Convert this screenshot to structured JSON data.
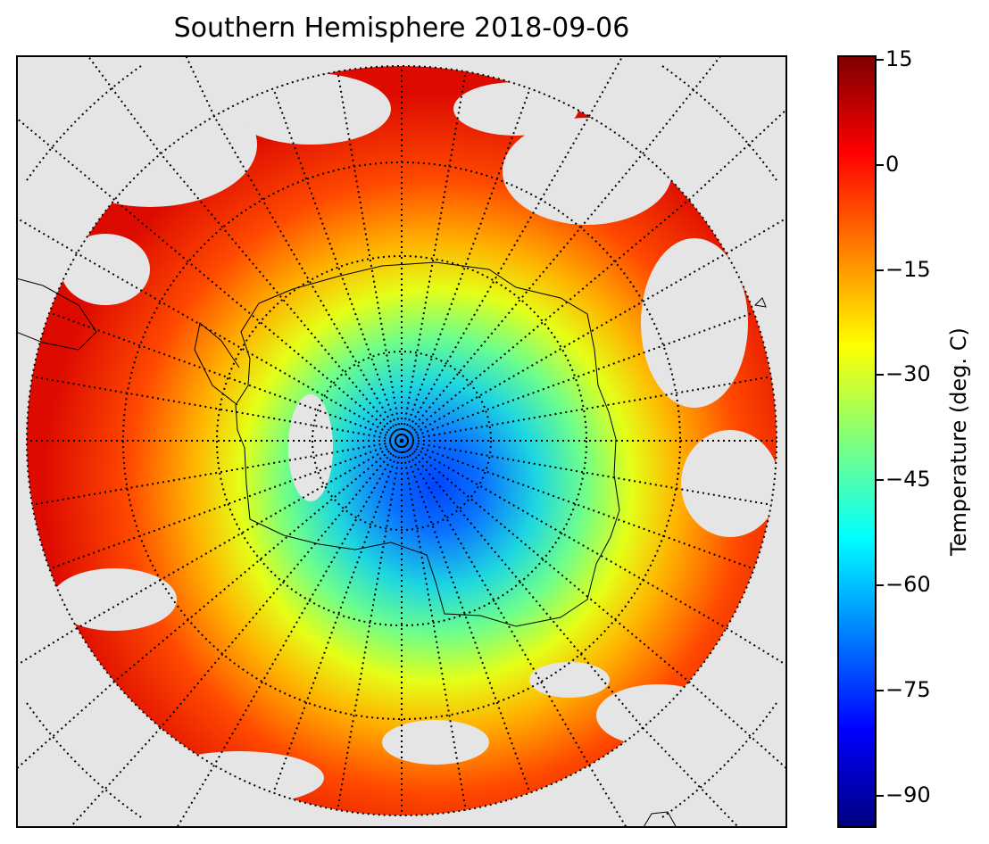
{
  "title": "Southern Hemisphere 2018-09-06",
  "map": {
    "projection": "south-polar-stereographic",
    "graticule": "dotted",
    "background_color": "#e5e5e5",
    "land_outline_color": "#000000"
  },
  "colorbar": {
    "label": "Temperature (deg. C)",
    "colormap": "jet",
    "range": [
      -95,
      15
    ],
    "ticks": [
      "15",
      "0",
      "−15",
      "−30",
      "−45",
      "−60",
      "−75",
      "−90"
    ]
  }
}
